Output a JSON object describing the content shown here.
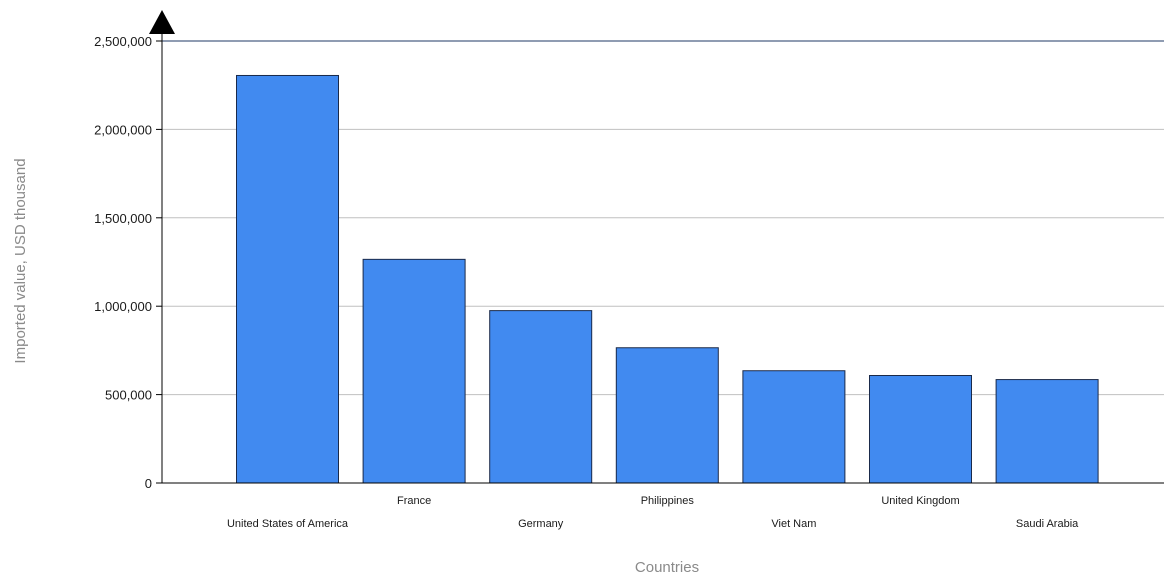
{
  "chart_data": {
    "type": "bar",
    "title": "",
    "xlabel": "Countries",
    "ylabel": "Imported value, USD thousand",
    "categories": [
      "United States of America",
      "France",
      "Germany",
      "Philippines",
      "Viet Nam",
      "United Kingdom",
      "Saudi Arabia"
    ],
    "values": [
      2305000,
      1265000,
      975000,
      765000,
      635000,
      608000,
      585000
    ],
    "ylim": [
      0,
      2500000
    ],
    "yticks": [
      0,
      500000,
      1000000,
      1500000,
      2000000,
      2500000
    ],
    "ytick_labels": [
      "0",
      "500,000",
      "1,000,000",
      "1,500,000",
      "2,000,000",
      "2,500,000"
    ],
    "grid": true,
    "legend": "none",
    "colors": {
      "bar": "#418af0",
      "bar_edge": "#1a2a4a",
      "grid": "#c0c0c0",
      "axis": "#000000",
      "top_line": "#1f3864"
    }
  }
}
